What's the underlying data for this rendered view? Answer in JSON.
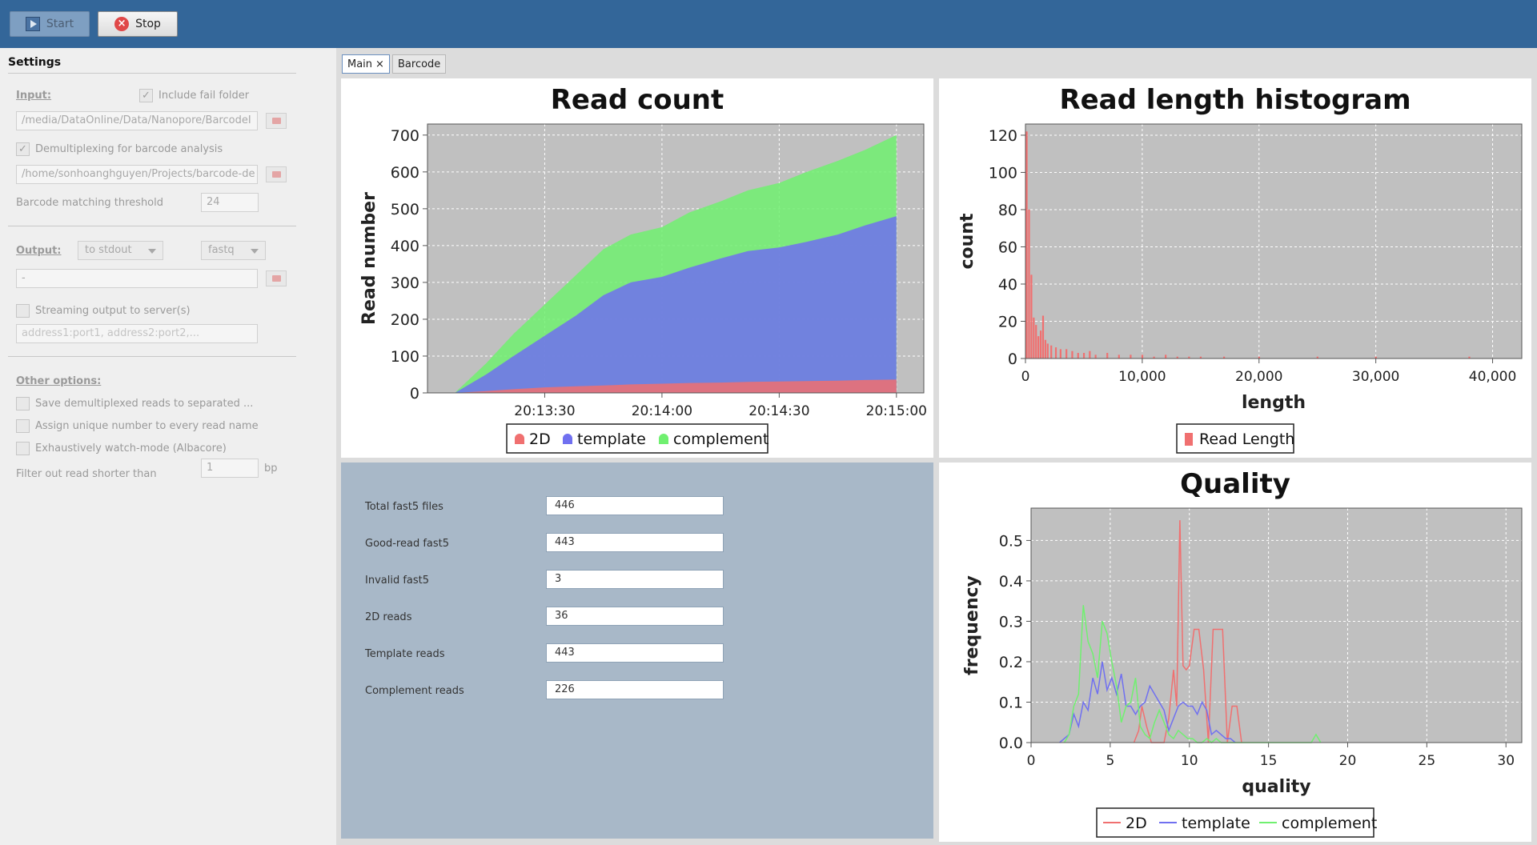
{
  "toolbar": {
    "start_label": "Start",
    "stop_label": "Stop"
  },
  "settings": {
    "title": "Settings",
    "input_label": "Input:",
    "include_fail_label": "Include fail folder",
    "input_path": "/media/DataOnline/Data/Nanopore/BarcodeI",
    "demultiplex_label": "Demultiplexing for barcode analysis",
    "barcode_path": "/home/sonhoanghguyen/Projects/barcode-de",
    "threshold_label": "Barcode matching threshold",
    "threshold_value": "24",
    "output_label": "Output:",
    "output_target": "to stdout",
    "output_format": "fastq",
    "output_path": "-",
    "streaming_label": "Streaming output to server(s)",
    "server_placeholder": "address1:port1, address2:port2,...",
    "other_label": "Other options:",
    "save_demux_label": "Save demultiplexed reads to separated ...",
    "assign_unique_label": "Assign unique number to every read name",
    "watch_mode_label": "Exhaustively watch-mode (Albacore)",
    "filter_label": "Filter out read shorter than",
    "filter_value": "1",
    "filter_unit": "bp"
  },
  "tabs": [
    {
      "label": "Main",
      "close": "×"
    },
    {
      "label": "Barcode"
    }
  ],
  "stats": [
    {
      "label": "Total fast5 files",
      "value": "446"
    },
    {
      "label": "Good-read fast5",
      "value": "443"
    },
    {
      "label": "Invalid fast5",
      "value": "3"
    },
    {
      "label": "2D reads",
      "value": "36"
    },
    {
      "label": "Template reads",
      "value": "443"
    },
    {
      "label": "Complement reads",
      "value": "226"
    }
  ],
  "colors": {
    "series_2d": "#f07070",
    "series_template": "#7070f0",
    "series_complement": "#70f070",
    "plot_bg": "#c0c0c0",
    "toolbar": "#336699"
  },
  "chart_data": [
    {
      "type": "area",
      "title": "Read count",
      "xlabel": "",
      "ylabel": "Read number",
      "x_ticks": [
        "20:13:30",
        "20:14:00",
        "20:14:30",
        "20:15:00"
      ],
      "y_ticks": [
        "0",
        "100",
        "200",
        "300",
        "400",
        "500",
        "600",
        "700"
      ],
      "ylim": [
        0,
        730
      ],
      "x_unit": "seconds since 20:13:00",
      "xlim": [
        0,
        127
      ],
      "x": [
        7,
        15,
        22,
        30,
        38,
        45,
        52,
        60,
        67,
        75,
        82,
        90,
        97,
        105,
        112,
        120
      ],
      "series": [
        {
          "name": "2D",
          "values": [
            0,
            5,
            10,
            15,
            18,
            20,
            23,
            25,
            27,
            28,
            30,
            31,
            32,
            33,
            35,
            36
          ]
        },
        {
          "name": "template",
          "values": [
            0,
            50,
            100,
            155,
            210,
            265,
            300,
            315,
            340,
            365,
            385,
            395,
            410,
            430,
            455,
            480
          ]
        },
        {
          "name": "complement",
          "values": [
            0,
            80,
            160,
            240,
            320,
            390,
            430,
            450,
            490,
            520,
            550,
            570,
            600,
            630,
            660,
            700
          ]
        }
      ],
      "stacking": "cumulative totals shown",
      "legend": [
        "2D",
        "template",
        "complement"
      ],
      "legend_position": "bottom",
      "grid": true
    },
    {
      "type": "bar",
      "title": "Read length histogram",
      "xlabel": "length",
      "ylabel": "count",
      "x_ticks": [
        "0",
        "10,000",
        "20,000",
        "30,000",
        "40,000"
      ],
      "y_ticks": [
        "0",
        "20",
        "40",
        "60",
        "80",
        "100",
        "120"
      ],
      "xlim": [
        0,
        42500
      ],
      "ylim": [
        0,
        126
      ],
      "bin_centers": [
        100,
        300,
        500,
        700,
        900,
        1100,
        1300,
        1500,
        1700,
        1900,
        2200,
        2600,
        3000,
        3500,
        4000,
        4500,
        5000,
        5500,
        6000,
        7000,
        8000,
        9000,
        10000,
        11000,
        12000,
        13000,
        14000,
        15000,
        17000,
        20000,
        25000,
        30000,
        38000
      ],
      "values": [
        122,
        80,
        45,
        22,
        18,
        12,
        15,
        23,
        10,
        8,
        7,
        6,
        5,
        5,
        4,
        3,
        3,
        4,
        2,
        3,
        2,
        2,
        2,
        1,
        2,
        1,
        1,
        1,
        1,
        1,
        1,
        1,
        1
      ],
      "legend": [
        "Read Length"
      ],
      "legend_position": "bottom",
      "grid": true
    },
    {
      "type": "line",
      "title": "Quality",
      "xlabel": "quality",
      "ylabel": "frequency",
      "x_ticks": [
        "0",
        "5",
        "10",
        "15",
        "20",
        "25",
        "30"
      ],
      "y_ticks": [
        "0.0",
        "0.1",
        "0.2",
        "0.3",
        "0.4",
        "0.5"
      ],
      "xlim": [
        0,
        31
      ],
      "ylim": [
        0,
        0.58
      ],
      "series": [
        {
          "name": "2D",
          "x": [
            6.5,
            6.8,
            7.0,
            7.3,
            7.6,
            8.4,
            8.7,
            9.0,
            9.2,
            9.4,
            9.6,
            9.8,
            10.0,
            10.3,
            10.6,
            10.9,
            11.2,
            11.5,
            11.8,
            12.1,
            12.4,
            12.7,
            13.0,
            13.3
          ],
          "values": [
            0,
            0.03,
            0.09,
            0.04,
            0,
            0,
            0.06,
            0.18,
            0.09,
            0.55,
            0.19,
            0.18,
            0.19,
            0.28,
            0.28,
            0.18,
            0.0,
            0.28,
            0.28,
            0.28,
            0.0,
            0.09,
            0.09,
            0
          ]
        },
        {
          "name": "template",
          "x": [
            1.8,
            2.1,
            2.4,
            2.7,
            3.0,
            3.3,
            3.6,
            3.9,
            4.2,
            4.5,
            4.8,
            5.1,
            5.4,
            5.7,
            6.0,
            6.3,
            6.6,
            6.9,
            7.2,
            7.5,
            7.8,
            8.1,
            8.4,
            8.7,
            9.0,
            9.3,
            9.6,
            9.9,
            10.2,
            10.5,
            10.8,
            11.1,
            11.4,
            11.7,
            12.0,
            12.3,
            12.6,
            12.9
          ],
          "values": [
            0,
            0.01,
            0.02,
            0.07,
            0.04,
            0.1,
            0.08,
            0.16,
            0.12,
            0.2,
            0.13,
            0.16,
            0.12,
            0.17,
            0.09,
            0.09,
            0.07,
            0.09,
            0.1,
            0.14,
            0.12,
            0.1,
            0.08,
            0.03,
            0.06,
            0.09,
            0.1,
            0.09,
            0.09,
            0.07,
            0.1,
            0.08,
            0.02,
            0.03,
            0.02,
            0.01,
            0.01,
            0
          ]
        },
        {
          "name": "complement",
          "x": [
            2.1,
            2.4,
            2.7,
            3.0,
            3.3,
            3.6,
            3.9,
            4.2,
            4.5,
            4.8,
            5.1,
            5.4,
            5.7,
            6.0,
            6.3,
            6.6,
            6.9,
            7.2,
            7.5,
            7.8,
            8.1,
            8.4,
            8.7,
            9.0,
            9.3,
            9.6,
            9.9,
            10.2,
            10.5,
            10.8,
            11.1,
            11.4,
            11.7,
            12.0,
            17.7,
            18.0,
            18.3
          ],
          "values": [
            0,
            0.02,
            0.09,
            0.12,
            0.34,
            0.25,
            0.22,
            0.16,
            0.3,
            0.27,
            0.2,
            0.14,
            0.05,
            0.09,
            0.1,
            0.16,
            0.04,
            0.02,
            0.01,
            0.05,
            0.08,
            0.05,
            0.02,
            0.01,
            0.03,
            0.02,
            0.01,
            0.01,
            0.0,
            0.0,
            0.01,
            0.0,
            0.01,
            0,
            0,
            0.02,
            0
          ]
        }
      ],
      "legend": [
        "2D",
        "template",
        "complement"
      ],
      "legend_position": "bottom",
      "grid": true
    }
  ]
}
